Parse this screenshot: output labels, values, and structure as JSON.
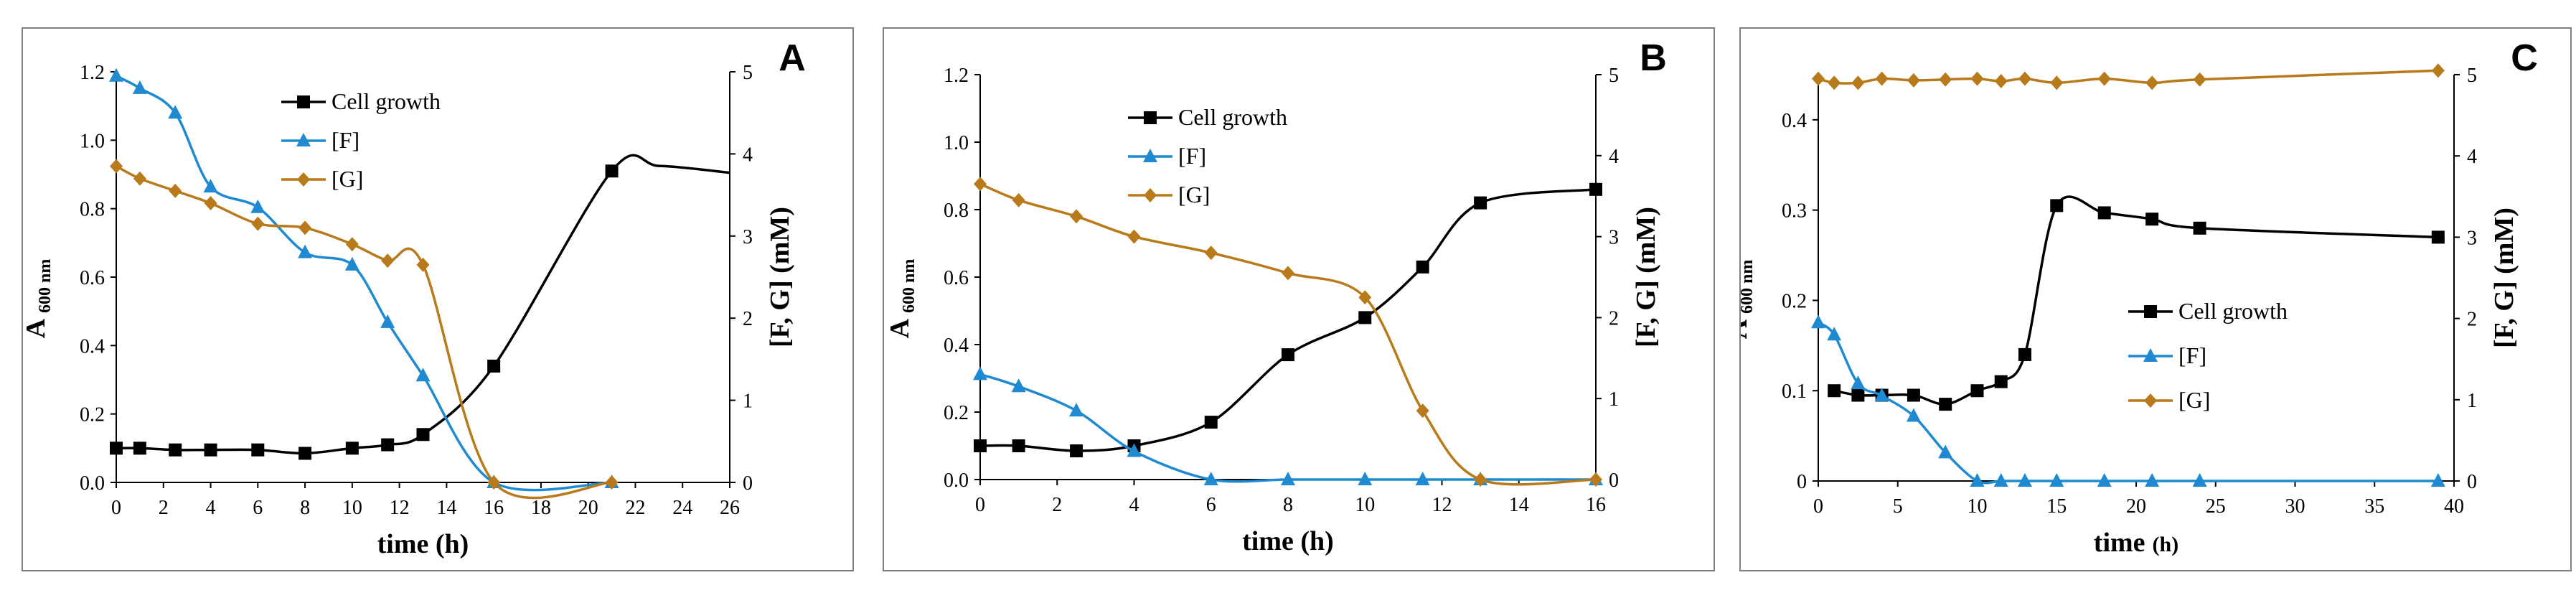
{
  "chart_data": [
    {
      "type": "line",
      "panel_letter": "A",
      "xlabel": "time (h)",
      "ylabel_main": "A",
      "ylabel_sub": "600 nm",
      "y2label": "[F, G] (mM)",
      "xlim": [
        0,
        26
      ],
      "ylim": [
        0,
        1.2
      ],
      "y2lim": [
        0,
        5
      ],
      "x_ticks": [
        0,
        2,
        4,
        6,
        8,
        10,
        12,
        14,
        16,
        18,
        20,
        22,
        24,
        26
      ],
      "y_ticks": [
        0.0,
        0.2,
        0.4,
        0.6,
        0.8,
        1.0,
        1.2
      ],
      "y_tick_labels": [
        "0.0",
        "0.2",
        "0.4",
        "0.6",
        "0.8",
        "1.0",
        "1.2"
      ],
      "y2_ticks": [
        0,
        1,
        2,
        3,
        4,
        5
      ],
      "legend_position": "top-center",
      "series": [
        {
          "name": "Cell growth",
          "color": "#000000",
          "marker": "square",
          "axis": "left",
          "show_legend": true,
          "points": [
            [
              0,
              0.1
            ],
            [
              1,
              0.1
            ],
            [
              2.5,
              0.095
            ],
            [
              4,
              0.095
            ],
            [
              6,
              0.095
            ],
            [
              8,
              0.085
            ],
            [
              10,
              0.1
            ],
            [
              11.5,
              0.11
            ],
            [
              13,
              0.14
            ],
            [
              16,
              0.34
            ],
            [
              21,
              0.91
            ]
          ],
          "curve_extra": [
            [
              23,
              0.925
            ],
            [
              26,
              0.905
            ]
          ]
        },
        {
          "name": "[F]",
          "color": "#1f8ad1",
          "marker": "triangle",
          "axis": "right",
          "show_legend": true,
          "points": [
            [
              0,
              4.95
            ],
            [
              1,
              4.8
            ],
            [
              2.5,
              4.5
            ],
            [
              4,
              3.6
            ],
            [
              6,
              3.35
            ],
            [
              8,
              2.8
            ],
            [
              10,
              2.65
            ],
            [
              11.5,
              1.95
            ],
            [
              13,
              1.3
            ],
            [
              16,
              0
            ],
            [
              21,
              0
            ]
          ]
        },
        {
          "name": "[G]",
          "color": "#b87a1a",
          "marker": "diamond",
          "axis": "right",
          "show_legend": true,
          "points": [
            [
              0,
              3.85
            ],
            [
              1,
              3.7
            ],
            [
              2.5,
              3.55
            ],
            [
              4,
              3.4
            ],
            [
              6,
              3.15
            ],
            [
              8,
              3.1
            ],
            [
              10,
              2.9
            ],
            [
              11.5,
              2.7
            ],
            [
              13,
              2.65
            ],
            [
              16,
              0
            ],
            [
              21,
              0
            ]
          ]
        }
      ]
    },
    {
      "type": "line",
      "panel_letter": "B",
      "xlabel": "time (h)",
      "ylabel_main": "A",
      "ylabel_sub": "600 nm",
      "y2label": "[F, G] (mM)",
      "xlim": [
        0,
        16
      ],
      "ylim": [
        0,
        1.2
      ],
      "y2lim": [
        0,
        5
      ],
      "x_ticks": [
        0,
        2,
        4,
        6,
        8,
        10,
        12,
        14,
        16
      ],
      "y_ticks": [
        0.0,
        0.2,
        0.4,
        0.6,
        0.8,
        1.0,
        1.2
      ],
      "y_tick_labels": [
        "0.0",
        "0.2",
        "0.4",
        "0.6",
        "0.8",
        "1.0",
        "1.2"
      ],
      "y2_ticks": [
        0,
        1,
        2,
        3,
        4,
        5
      ],
      "legend_position": "top-center",
      "series": [
        {
          "name": "Cell growth",
          "color": "#000000",
          "marker": "square",
          "axis": "left",
          "show_legend": true,
          "points": [
            [
              0,
              0.1
            ],
            [
              1,
              0.1
            ],
            [
              2.5,
              0.085
            ],
            [
              4,
              0.1
            ],
            [
              6,
              0.17
            ],
            [
              8,
              0.37
            ],
            [
              10,
              0.48
            ],
            [
              11.5,
              0.63
            ],
            [
              13,
              0.82
            ],
            [
              16,
              0.86
            ]
          ]
        },
        {
          "name": "[F]",
          "color": "#1f8ad1",
          "marker": "triangle",
          "axis": "right",
          "show_legend": true,
          "points": [
            [
              0,
              1.3
            ],
            [
              1,
              1.15
            ],
            [
              2.5,
              0.85
            ],
            [
              4,
              0.35
            ],
            [
              6,
              0
            ],
            [
              8,
              0
            ],
            [
              10,
              0
            ],
            [
              11.5,
              0
            ],
            [
              13,
              0
            ],
            [
              16,
              0
            ]
          ]
        },
        {
          "name": "[G]",
          "color": "#b87a1a",
          "marker": "diamond",
          "axis": "right",
          "show_legend": true,
          "points": [
            [
              0,
              3.65
            ],
            [
              1,
              3.45
            ],
            [
              2.5,
              3.25
            ],
            [
              4,
              3.0
            ],
            [
              6,
              2.8
            ],
            [
              8,
              2.55
            ],
            [
              10,
              2.25
            ],
            [
              11.5,
              0.85
            ],
            [
              13,
              0
            ],
            [
              16,
              0
            ]
          ]
        }
      ]
    },
    {
      "type": "line",
      "panel_letter": "C",
      "xlabel": "time",
      "xlabel_unit": "(h)",
      "ylabel_main": "A",
      "ylabel_sub": "600 nm",
      "y2label": "[F, G] (mM)",
      "xlim": [
        0,
        40
      ],
      "ylim": [
        0,
        0.45
      ],
      "y2lim": [
        0,
        5
      ],
      "x_ticks": [
        0,
        5,
        10,
        15,
        20,
        25,
        30,
        35,
        40
      ],
      "y_ticks": [
        0,
        0.1,
        0.2,
        0.3,
        0.4
      ],
      "y_tick_labels": [
        "0",
        "0.1",
        "0.2",
        "0.3",
        "0.4"
      ],
      "y2_ticks": [
        0,
        1,
        2,
        3,
        4,
        5
      ],
      "legend_position": "center-right",
      "series": [
        {
          "name": "Cell growth",
          "color": "#000000",
          "marker": "square",
          "axis": "left",
          "show_legend": true,
          "points": [
            [
              1,
              0.1
            ],
            [
              2.5,
              0.095
            ],
            [
              4,
              0.095
            ],
            [
              6,
              0.095
            ],
            [
              8,
              0.085
            ],
            [
              10,
              0.1
            ],
            [
              11.5,
              0.11
            ],
            [
              13,
              0.14
            ],
            [
              15,
              0.305
            ],
            [
              18,
              0.297
            ],
            [
              21,
              0.29
            ],
            [
              24,
              0.28
            ],
            [
              39,
              0.27
            ]
          ]
        },
        {
          "name": "[F]",
          "color": "#1f8ad1",
          "marker": "triangle",
          "axis": "right",
          "show_legend": true,
          "points": [
            [
              0,
              1.95
            ],
            [
              1,
              1.8
            ],
            [
              2.5,
              1.2
            ],
            [
              4,
              1.05
            ],
            [
              6,
              0.8
            ],
            [
              8,
              0.35
            ],
            [
              10,
              0
            ],
            [
              11.5,
              0
            ],
            [
              13,
              0
            ],
            [
              15,
              0
            ],
            [
              18,
              0
            ],
            [
              21,
              0
            ],
            [
              24,
              0
            ],
            [
              39,
              0
            ]
          ]
        },
        {
          "name": "[G]",
          "color": "#b87a1a",
          "marker": "diamond",
          "axis": "right",
          "show_legend": true,
          "points": [
            [
              0,
              4.95
            ],
            [
              1,
              4.9
            ],
            [
              2.5,
              4.9
            ],
            [
              4,
              4.95
            ],
            [
              6,
              4.93
            ],
            [
              8,
              4.94
            ],
            [
              10,
              4.95
            ],
            [
              11.5,
              4.92
            ],
            [
              13,
              4.95
            ],
            [
              15,
              4.9
            ],
            [
              18,
              4.95
            ],
            [
              21,
              4.9
            ],
            [
              24,
              4.94
            ],
            [
              39,
              5.05
            ]
          ]
        }
      ]
    }
  ]
}
